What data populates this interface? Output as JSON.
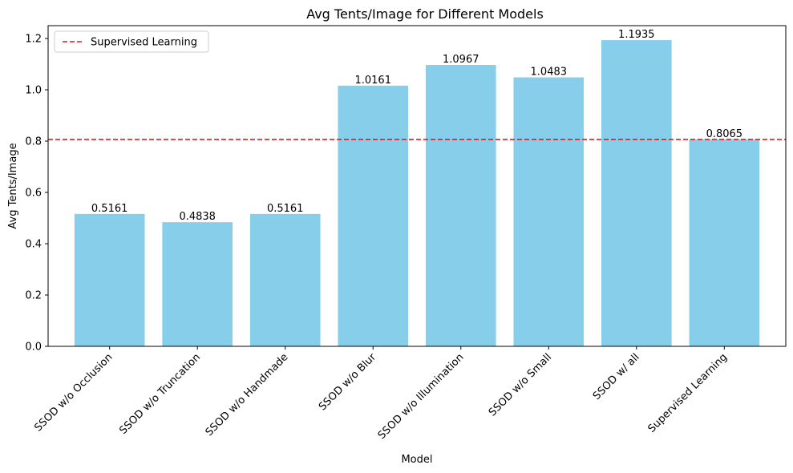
{
  "chart_data": {
    "type": "bar",
    "title": "Avg Tents/Image for Different Models",
    "xlabel": "Model",
    "ylabel": "Avg Tents/Image",
    "categories": [
      "SSOD w/o Occlusion",
      "SSOD w/o Truncation",
      "SSOD w/o Handmade",
      "SSOD w/o Blur",
      "SSOD w/o Illumination",
      "SSOD w/o Small",
      "SSOD w/ all",
      "Supervised Learning"
    ],
    "values": [
      0.5161,
      0.4838,
      0.5161,
      1.0161,
      1.0967,
      1.0483,
      1.1935,
      0.8065
    ],
    "value_labels": [
      "0.5161",
      "0.4838",
      "0.5161",
      "1.0161",
      "1.0967",
      "1.0483",
      "1.1935",
      "0.8065"
    ],
    "ylim": [
      0,
      1.25
    ],
    "yticks": [
      0.0,
      0.2,
      0.4,
      0.6,
      0.8,
      1.0,
      1.2
    ],
    "ytick_labels": [
      "0.0",
      "0.2",
      "0.4",
      "0.6",
      "0.8",
      "1.0",
      "1.2"
    ],
    "bar_color": "#87ceeb",
    "reference_line": {
      "name": "Supervised Learning",
      "value": 0.8065,
      "color": "#e41a1c",
      "style": "dashed"
    },
    "legend": {
      "position": "top-left",
      "entries": [
        "Supervised Learning"
      ]
    },
    "grid": false
  }
}
